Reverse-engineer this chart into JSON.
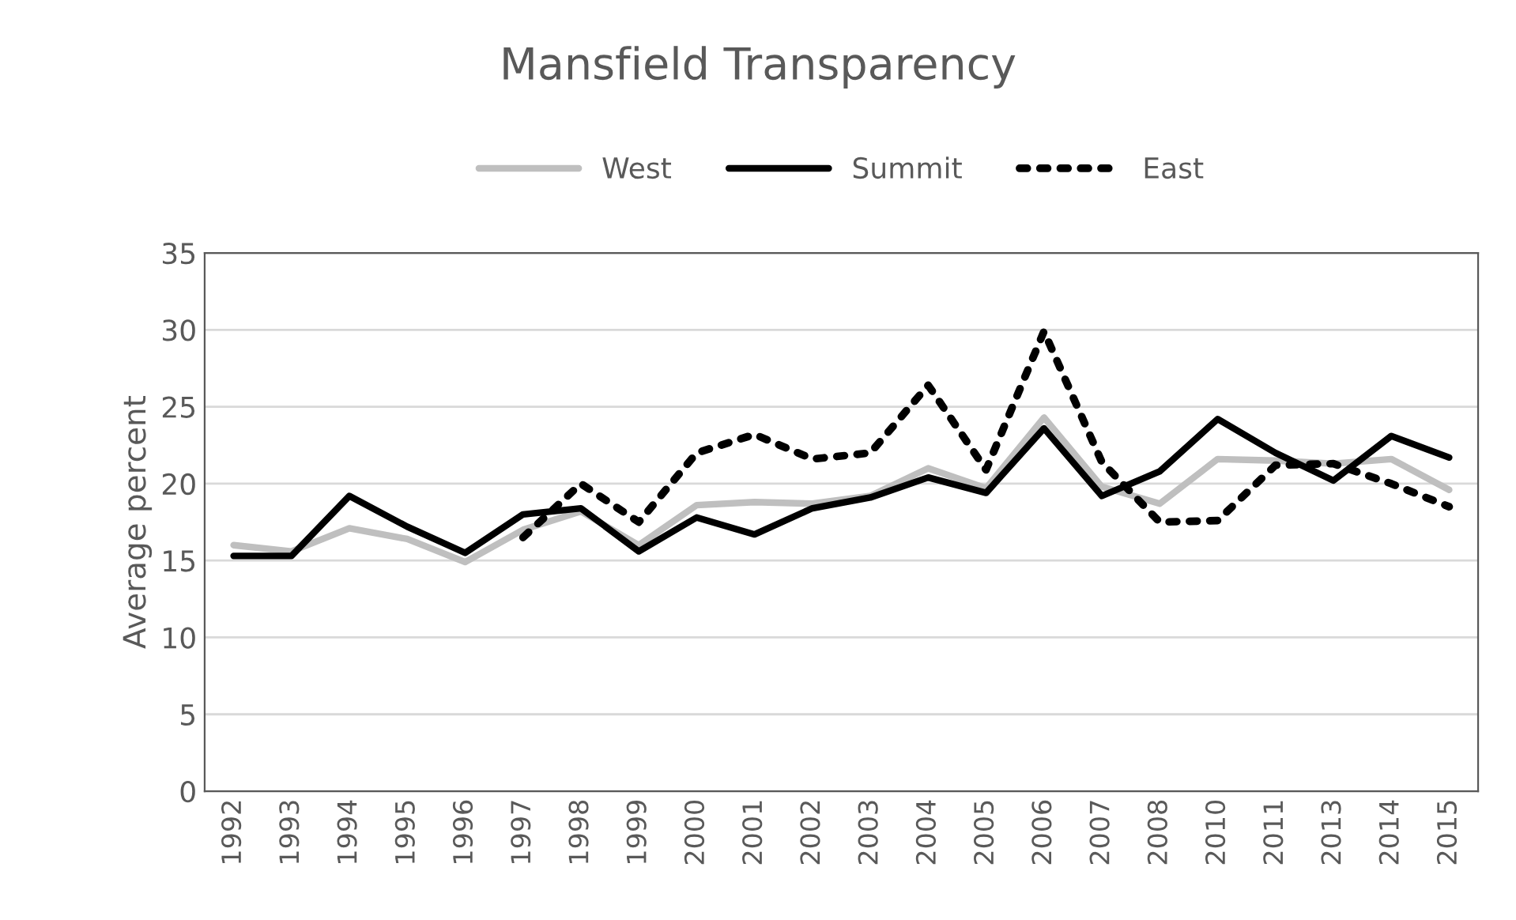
{
  "chart_data": {
    "type": "line",
    "title": "Mansfield Transparency",
    "ylabel": "Average percent",
    "categories": [
      "1992",
      "1993",
      "1994",
      "1995",
      "1996",
      "1997",
      "1998",
      "1999",
      "2000",
      "2001",
      "2002",
      "2003",
      "2004",
      "2005",
      "2006",
      "2007",
      "2008",
      "2010",
      "2011",
      "2013",
      "2014",
      "2015"
    ],
    "series": [
      {
        "name": "West",
        "color": "#bfbfbf",
        "line_style": "solid",
        "values": [
          16.0,
          15.6,
          17.1,
          16.4,
          14.9,
          17.0,
          18.2,
          16.0,
          18.6,
          18.8,
          18.7,
          19.2,
          21.0,
          19.7,
          24.3,
          19.8,
          18.7,
          21.6,
          21.5,
          21.3,
          21.6,
          19.6
        ]
      },
      {
        "name": "Summit",
        "color": "#000000",
        "line_style": "solid",
        "values": [
          15.3,
          15.3,
          19.2,
          17.2,
          15.5,
          18.0,
          18.4,
          15.6,
          17.8,
          16.7,
          18.4,
          19.1,
          20.4,
          19.4,
          23.6,
          19.2,
          20.8,
          24.2,
          22.0,
          20.2,
          23.1,
          21.7
        ]
      },
      {
        "name": "East",
        "color": "#000000",
        "line_style": "dotted",
        "values": [
          null,
          null,
          null,
          null,
          null,
          16.5,
          20.0,
          17.5,
          22.0,
          23.2,
          21.6,
          22.0,
          26.4,
          20.9,
          29.9,
          21.4,
          17.5,
          17.6,
          21.2,
          21.3,
          20.0,
          18.5
        ]
      }
    ],
    "ylim": [
      0,
      35
    ],
    "yticks": [
      0,
      5,
      10,
      15,
      20,
      25,
      30,
      35
    ],
    "grid": "y",
    "legend": "top"
  }
}
